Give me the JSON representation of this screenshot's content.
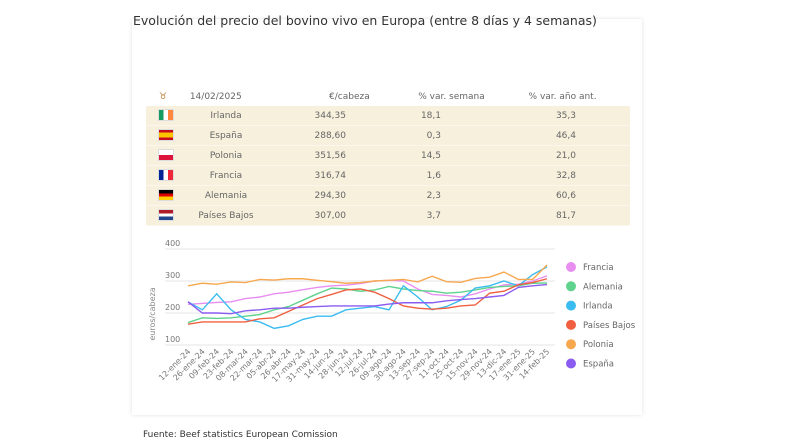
{
  "title": "Evolución del precio del bovino vivo en Europa (entre 8 días y 4 semanas)",
  "table": {
    "icon": "bull-icon",
    "headers": [
      "14/02/2025",
      "€/cabeza",
      "% var. semana",
      "% var. año ant."
    ],
    "rows": [
      {
        "country": "Irlanda",
        "flag": [
          "#169b62",
          "#ffffff",
          "#ff883e"
        ],
        "price": "344,35",
        "week": "18,1",
        "year": "35,3"
      },
      {
        "country": "España",
        "flag": [
          "#c60b1e",
          "#ffc400",
          "#c60b1e"
        ],
        "price": "288,60",
        "week": "0,3",
        "year": "46,4"
      },
      {
        "country": "Polonia",
        "flag": [
          "#ffffff",
          "#dc143c"
        ],
        "price": "351,56",
        "week": "14,5",
        "year": "21,0"
      },
      {
        "country": "Francia",
        "flag": [
          "#002395",
          "#ffffff",
          "#ed2939"
        ],
        "price": "316,74",
        "week": "1,6",
        "year": "32,8"
      },
      {
        "country": "Alemania",
        "flag": [
          "#000000",
          "#dd0000",
          "#ffce00"
        ],
        "price": "294,30",
        "week": "2,3",
        "year": "60,6"
      },
      {
        "country": "Países Bajos",
        "flag": [
          "#ae1c28",
          "#ffffff",
          "#21468b"
        ],
        "price": "307,00",
        "week": "3,7",
        "year": "81,7"
      }
    ]
  },
  "chart_data": {
    "type": "line",
    "ylabel": "euros/cabeza",
    "ylim": [
      100,
      400
    ],
    "yticks": [
      100,
      200,
      300,
      400
    ],
    "grid": true,
    "legend": "right",
    "x": [
      "12-ene-24",
      "26-ene-24",
      "09-feb-24",
      "23-feb-24",
      "08-mar-24",
      "22-mar-24",
      "05-abr-24",
      "26-abr-24",
      "17-may-24",
      "31-may-24",
      "14-jun-24",
      "28-jun-24",
      "12-jul-24",
      "26-jul-24",
      "09-ago-24",
      "30-ago-24",
      "13-sep-24",
      "27-sep-24",
      "11-oct-24",
      "25-oct-24",
      "15-nov-24",
      "29-nov-24",
      "13-dic-24",
      "17-ene-25",
      "31-ene-25",
      "14-feb-25"
    ],
    "series": [
      {
        "name": "Francia",
        "color": "#e88ef0",
        "values": [
          227,
          230,
          233,
          235,
          245,
          250,
          260,
          265,
          273,
          280,
          285,
          287,
          292,
          300,
          302,
          300,
          275,
          258,
          255,
          250,
          260,
          275,
          288,
          290,
          300,
          316
        ]
      },
      {
        "name": "Alemania",
        "color": "#5fd38d",
        "values": [
          170,
          185,
          183,
          185,
          190,
          195,
          210,
          220,
          240,
          260,
          278,
          275,
          268,
          272,
          283,
          275,
          270,
          268,
          262,
          265,
          272,
          280,
          283,
          285,
          293,
          294
        ]
      },
      {
        "name": "Irlanda",
        "color": "#3bbcf0",
        "values": [
          235,
          210,
          260,
          210,
          180,
          172,
          152,
          160,
          180,
          190,
          190,
          210,
          215,
          220,
          210,
          285,
          250,
          210,
          220,
          240,
          278,
          285,
          300,
          285,
          320,
          344
        ]
      },
      {
        "name": "Países Bajos",
        "color": "#f06040",
        "values": [
          165,
          172,
          172,
          172,
          172,
          182,
          185,
          205,
          225,
          245,
          258,
          272,
          275,
          265,
          245,
          222,
          215,
          212,
          215,
          222,
          225,
          262,
          268,
          288,
          295,
          307
        ]
      },
      {
        "name": "Polonia",
        "color": "#f7a84f",
        "values": [
          285,
          293,
          290,
          297,
          295,
          305,
          303,
          307,
          307,
          302,
          298,
          293,
          295,
          300,
          302,
          305,
          297,
          315,
          298,
          296,
          308,
          312,
          328,
          305,
          305,
          350
        ]
      },
      {
        "name": "España",
        "color": "#8b5cf0",
        "values": [
          235,
          200,
          200,
          198,
          207,
          210,
          215,
          215,
          218,
          220,
          222,
          222,
          222,
          222,
          228,
          232,
          232,
          232,
          238,
          242,
          245,
          250,
          255,
          280,
          285,
          289
        ]
      }
    ]
  },
  "footer": "Fuente: Beef statistics European Comission"
}
